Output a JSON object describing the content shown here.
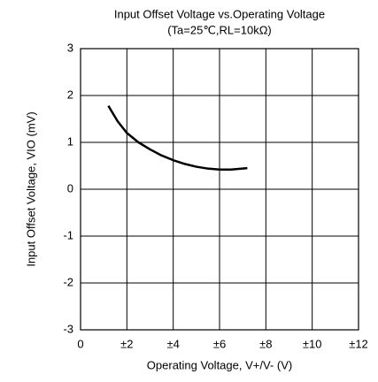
{
  "chart_data": {
    "type": "line",
    "title": "Input Offset Voltage vs.Operating Voltage",
    "subtitle": "(Ta=25℃,RL=10kΩ)",
    "xlabel": "Operating Voltage, V+/V- (V)",
    "ylabel": "Input Offset Voltage, VIO (mV)",
    "x": [
      1.2,
      1.6,
      2,
      2.5,
      3,
      3.5,
      4,
      4.5,
      5,
      5.5,
      6,
      6.5,
      7.2
    ],
    "series": [
      {
        "name": "VIO",
        "color": "#000000",
        "values": [
          1.78,
          1.45,
          1.2,
          1.0,
          0.85,
          0.72,
          0.62,
          0.54,
          0.48,
          0.44,
          0.42,
          0.42,
          0.45
        ]
      }
    ],
    "xlim": [
      0,
      12
    ],
    "xticks": [
      0,
      {
        "value": 2,
        "label": "±2"
      },
      {
        "value": 4,
        "label": "±4"
      },
      {
        "value": 6,
        "label": "±6"
      },
      {
        "value": 8,
        "label": "±8"
      },
      {
        "value": 10,
        "label": "±10"
      },
      {
        "value": 12,
        "label": "±12"
      }
    ],
    "ylim": [
      -3,
      3
    ],
    "yticks": [
      -3,
      -2,
      -1,
      0,
      1,
      2,
      3
    ],
    "grid": true
  }
}
